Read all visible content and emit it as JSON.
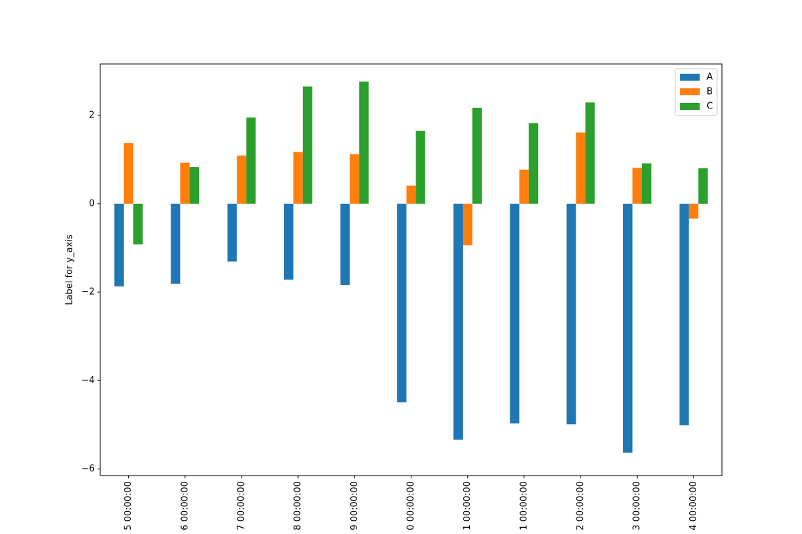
{
  "chart_data": {
    "type": "bar",
    "title": "",
    "xlabel": "",
    "ylabel": "Label for y_axis",
    "categories": [
      "5 00:00:00",
      "6 00:00:00",
      "7 00:00:00",
      "8 00:00:00",
      "9 00:00:00",
      "0 00:00:00",
      "1 00:00:00",
      "1 00:00:00",
      "2 00:00:00",
      "3 00:00:00",
      "4 00:00:00"
    ],
    "series": [
      {
        "name": "A",
        "color": "#1f77b4",
        "values": [
          -1.87,
          -1.81,
          -1.31,
          -1.72,
          -1.84,
          -4.49,
          -5.34,
          -4.97,
          -4.99,
          -5.63,
          -5.01
        ]
      },
      {
        "name": "B",
        "color": "#ff7f0e",
        "values": [
          1.37,
          0.93,
          1.09,
          1.17,
          1.12,
          0.41,
          -0.94,
          0.77,
          1.61,
          0.81,
          -0.34
        ]
      },
      {
        "name": "C",
        "color": "#2ca02c",
        "values": [
          -0.92,
          0.83,
          1.95,
          2.65,
          2.76,
          1.65,
          2.17,
          1.82,
          2.29,
          0.91,
          0.8
        ]
      }
    ],
    "ylim": [
      -6.15,
      3.16
    ],
    "yticks": [
      -6,
      -4,
      -2,
      0,
      2
    ],
    "ytick_labels": [
      "−6",
      "−4",
      "−2",
      "0",
      "2"
    ],
    "grid": false,
    "legend_position": "top-right"
  }
}
